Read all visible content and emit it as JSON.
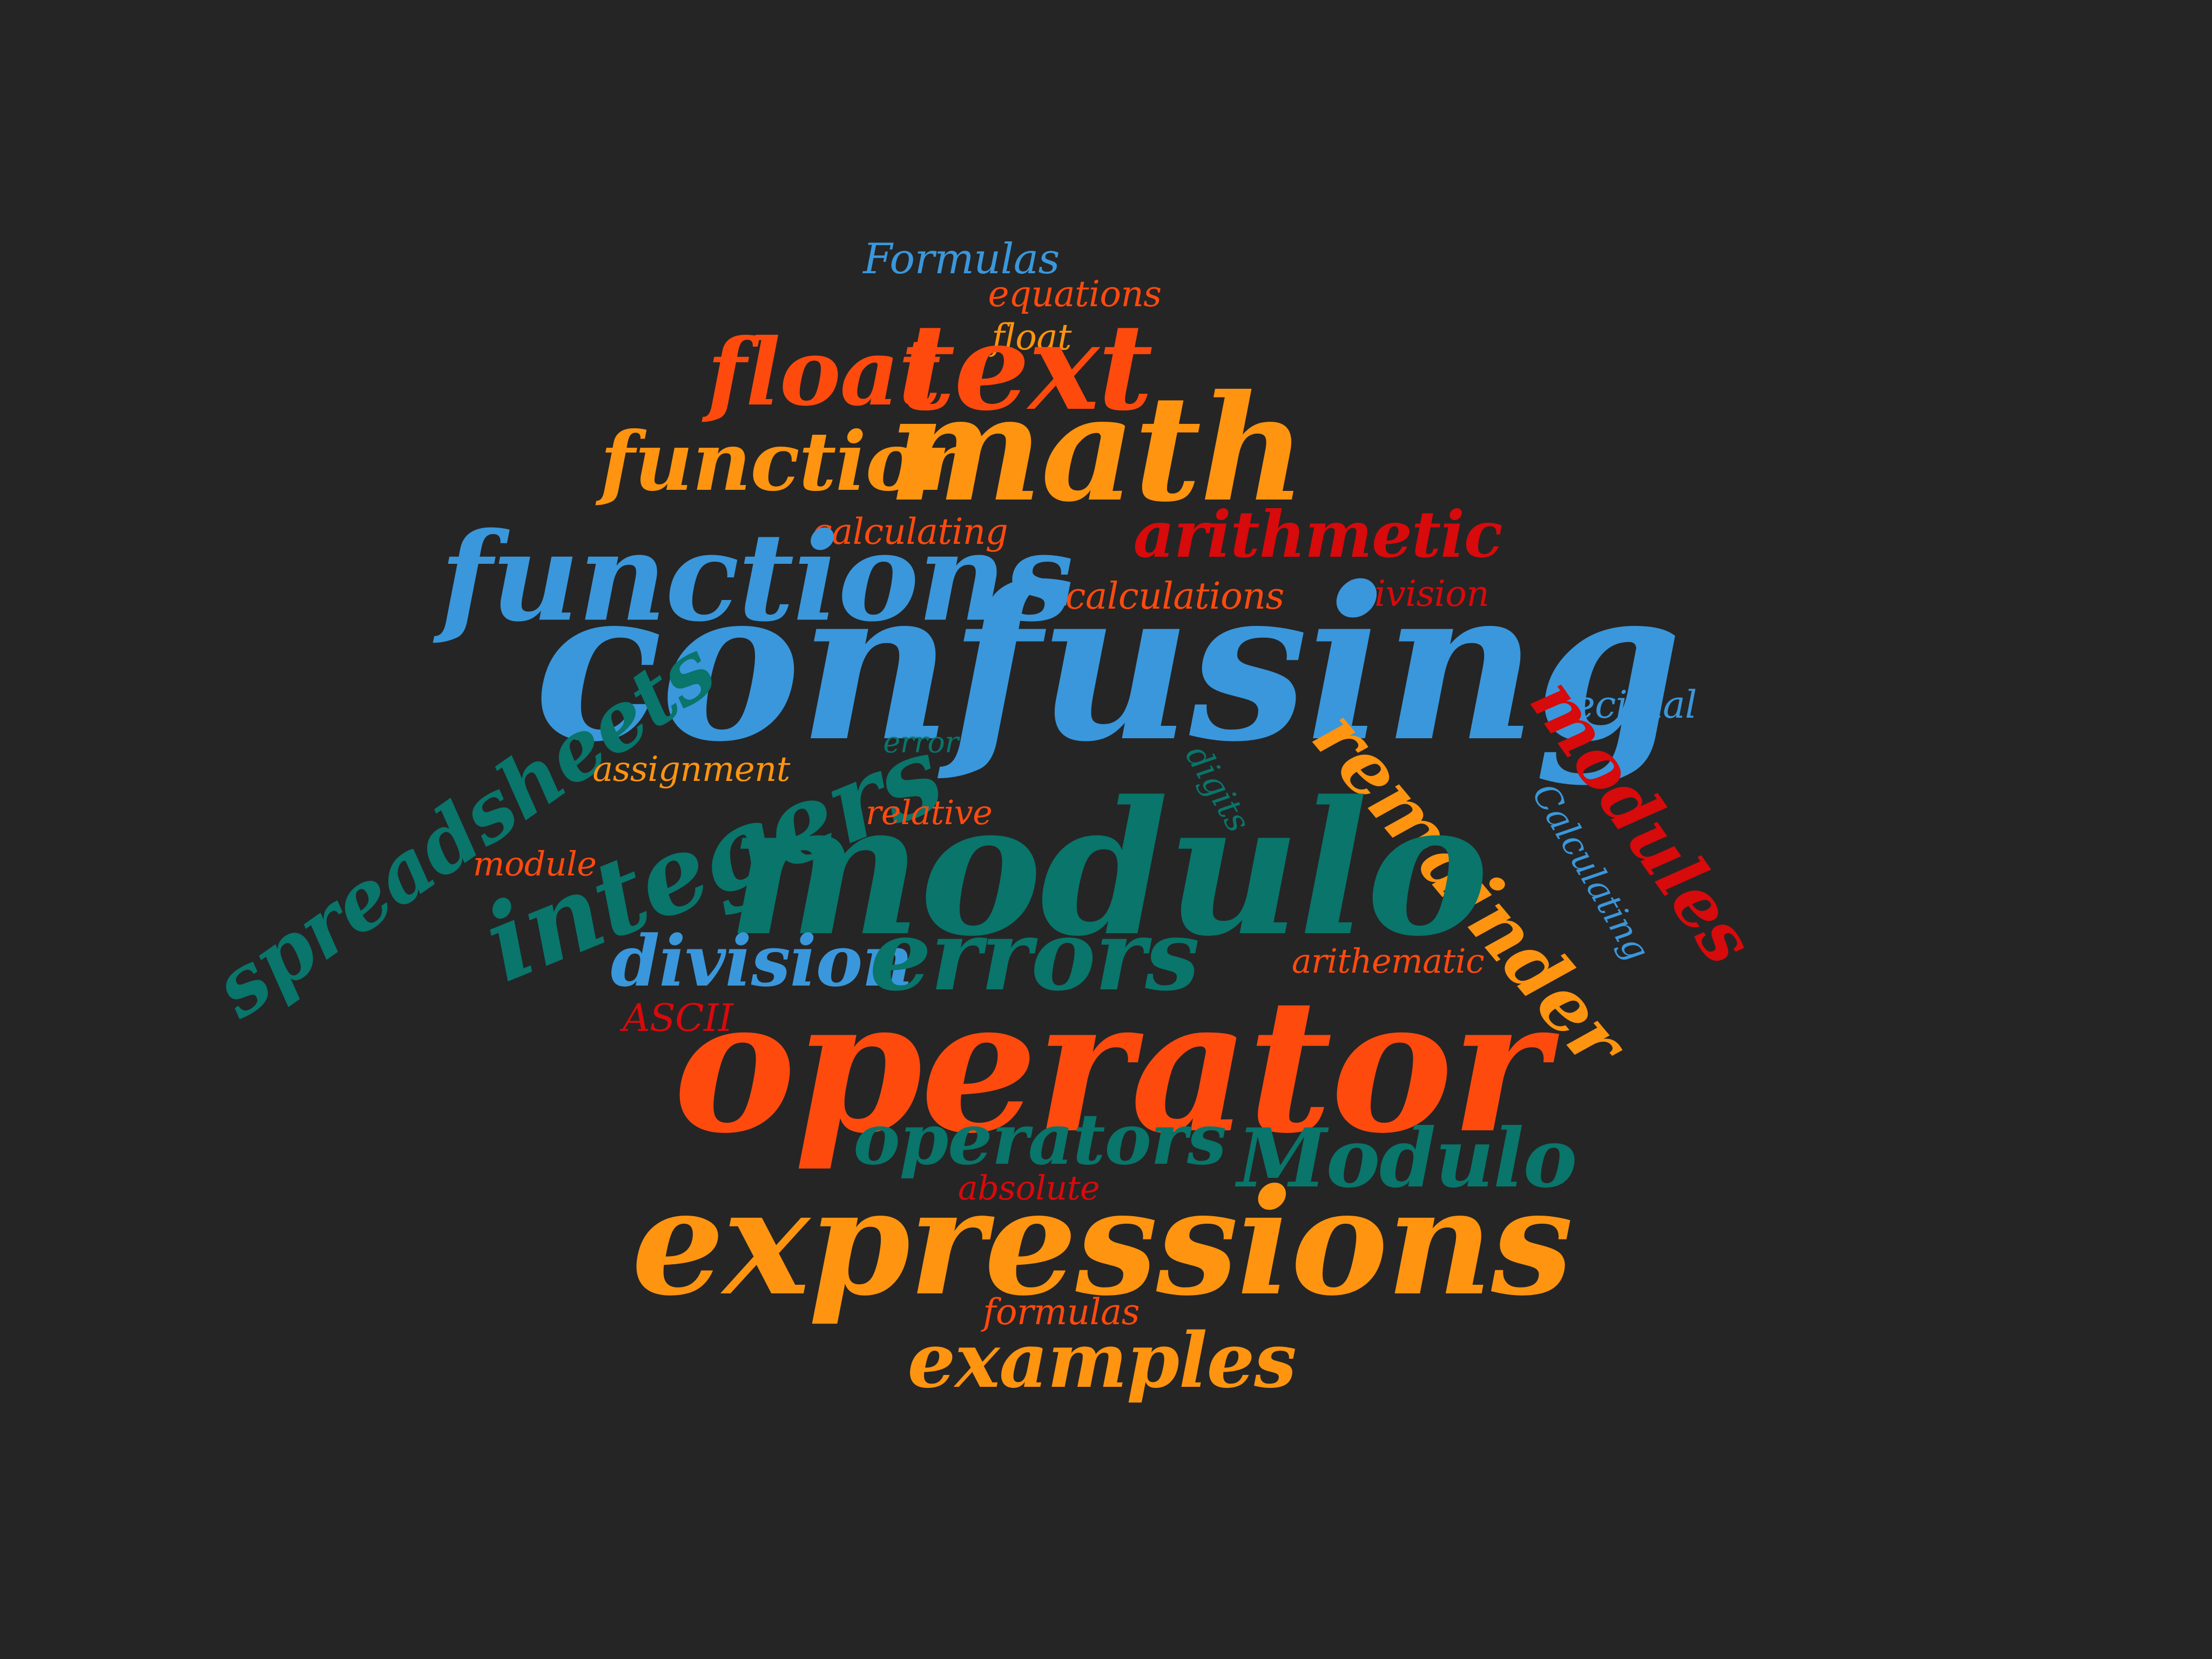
{
  "colors": {
    "background": "#252525",
    "blue": "#3a97db",
    "orange": "#ff9410",
    "red_orange": "#ff4a0e",
    "red": "#d70a0c",
    "teal": "#09756b"
  },
  "words": [
    {
      "id": "formulas-upper",
      "text": "Formulas",
      "color": "blue"
    },
    {
      "id": "equations",
      "text": "equations",
      "color": "red_orange"
    },
    {
      "id": "float-small",
      "text": "float",
      "color": "orange"
    },
    {
      "id": "float",
      "text": "float",
      "color": "red_orange"
    },
    {
      "id": "text",
      "text": "text",
      "color": "red_orange"
    },
    {
      "id": "math",
      "text": "math",
      "color": "orange"
    },
    {
      "id": "function",
      "text": "function",
      "color": "orange"
    },
    {
      "id": "calculating",
      "text": "calculating",
      "color": "red_orange"
    },
    {
      "id": "arithmetic",
      "text": "arithmetic",
      "color": "red"
    },
    {
      "id": "functions",
      "text": "functions",
      "color": "blue"
    },
    {
      "id": "calculations",
      "text": "calculations",
      "color": "red_orange"
    },
    {
      "id": "division-upper",
      "text": "Division",
      "color": "red"
    },
    {
      "id": "confusing",
      "text": "confusing",
      "color": "blue"
    },
    {
      "id": "decimal",
      "text": "decimal",
      "color": "blue"
    },
    {
      "id": "spreadsheets",
      "text": "spreadsheets",
      "color": "teal"
    },
    {
      "id": "error",
      "text": "error",
      "color": "teal"
    },
    {
      "id": "assignment",
      "text": "assignment",
      "color": "orange"
    },
    {
      "id": "digits",
      "text": "digits",
      "color": "teal"
    },
    {
      "id": "modules",
      "text": "modules",
      "color": "red"
    },
    {
      "id": "calculating-upper",
      "text": "Calculating",
      "color": "blue"
    },
    {
      "id": "integers",
      "text": "integers",
      "color": "teal"
    },
    {
      "id": "relative",
      "text": "relative",
      "color": "red_orange"
    },
    {
      "id": "remainder",
      "text": "remainder",
      "color": "orange"
    },
    {
      "id": "module",
      "text": "module",
      "color": "red_orange"
    },
    {
      "id": "modulo",
      "text": "modulo",
      "color": "teal"
    },
    {
      "id": "division",
      "text": "division",
      "color": "blue"
    },
    {
      "id": "errors",
      "text": "errors",
      "color": "teal"
    },
    {
      "id": "arithematic",
      "text": "arithematic",
      "color": "red_orange"
    },
    {
      "id": "ascii",
      "text": "ASCII",
      "color": "red"
    },
    {
      "id": "operator",
      "text": "operator",
      "color": "red_orange"
    },
    {
      "id": "operators",
      "text": "operators",
      "color": "teal"
    },
    {
      "id": "modulo-upper",
      "text": "Modulo",
      "color": "teal"
    },
    {
      "id": "absolute",
      "text": "absolute",
      "color": "red"
    },
    {
      "id": "expressions",
      "text": "expressions",
      "color": "orange"
    },
    {
      "id": "formulas",
      "text": "formulas",
      "color": "red_orange"
    },
    {
      "id": "examples",
      "text": "examples",
      "color": "orange"
    }
  ]
}
